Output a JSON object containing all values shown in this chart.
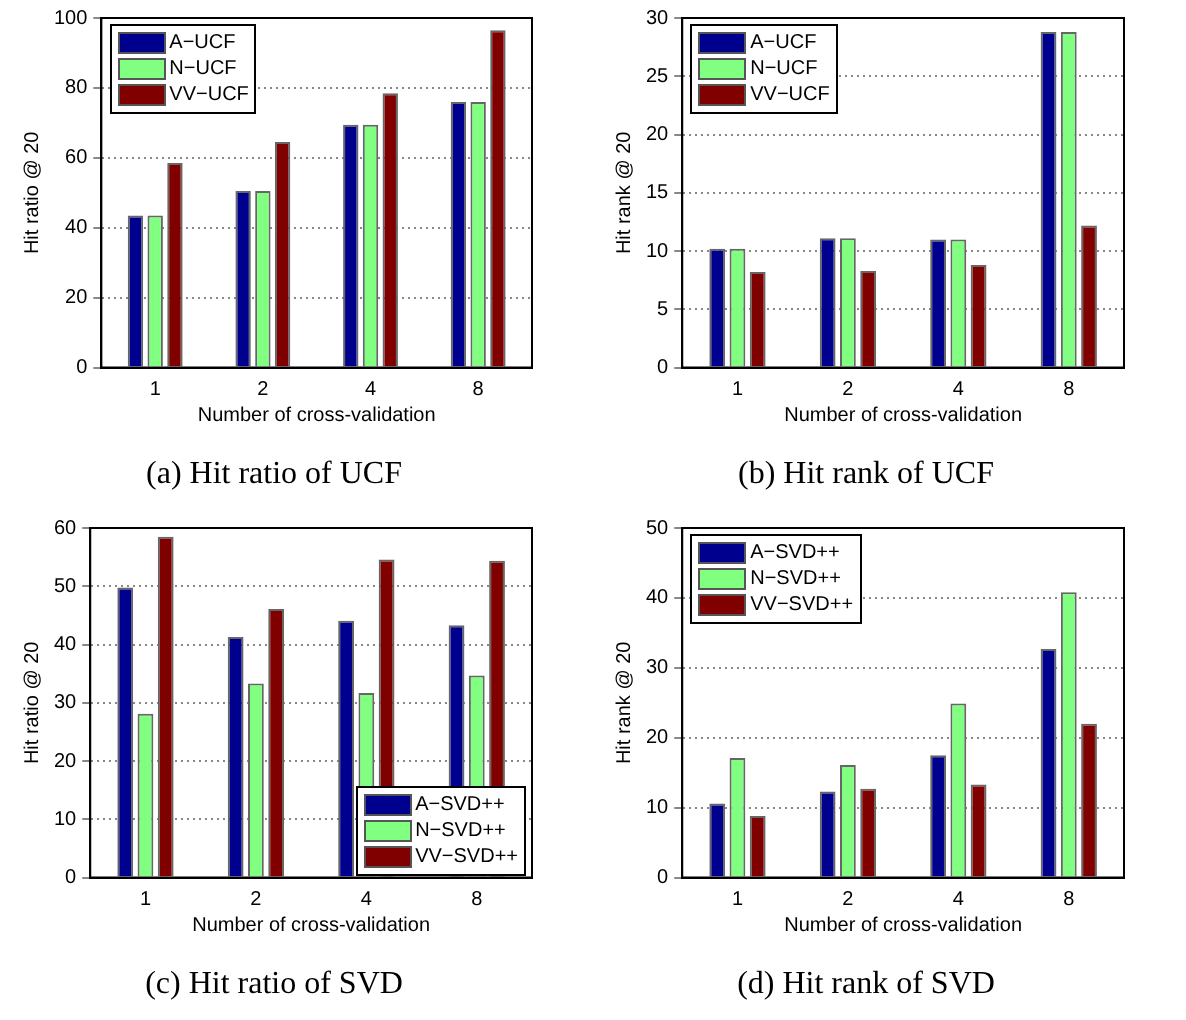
{
  "chart_data": [
    {
      "type": "bar",
      "title": "(a) Hit ratio of UCF",
      "xlabel": "Number of cross-validation",
      "ylabel": "Hit ratio @ 20",
      "categories": [
        "1",
        "2",
        "4",
        "8"
      ],
      "series": [
        {
          "name": "A−UCF",
          "color": "#00008f",
          "values": [
            43.5,
            50.5,
            69.5,
            76
          ]
        },
        {
          "name": "N−UCF",
          "color": "#80ff80",
          "values": [
            43.5,
            50.5,
            69.5,
            76
          ]
        },
        {
          "name": "VV−UCF",
          "color": "#800000",
          "values": [
            58.5,
            64.5,
            78.5,
            96.5
          ]
        }
      ],
      "ylim": [
        0,
        100
      ],
      "yticks": [
        0,
        20,
        40,
        60,
        80,
        100
      ],
      "grid": "y",
      "legend": "top left"
    },
    {
      "type": "bar",
      "title": "(b) Hit rank of UCF",
      "xlabel": "Number of cross-validation",
      "ylabel": "Hit rank @ 20",
      "categories": [
        "1",
        "2",
        "4",
        "8"
      ],
      "series": [
        {
          "name": "A−UCF",
          "color": "#00008f",
          "values": [
            10.2,
            11.1,
            11.0,
            28.8
          ]
        },
        {
          "name": "N−UCF",
          "color": "#80ff80",
          "values": [
            10.2,
            11.1,
            11.0,
            28.8
          ]
        },
        {
          "name": "VV−UCF",
          "color": "#800000",
          "values": [
            8.2,
            8.3,
            8.8,
            12.2
          ]
        }
      ],
      "ylim": [
        0,
        30
      ],
      "yticks": [
        0,
        5,
        10,
        15,
        20,
        25,
        30
      ],
      "grid": "y",
      "legend": "top left"
    },
    {
      "type": "bar",
      "title": "(c) Hit ratio of SVD",
      "xlabel": "Number of cross-validation",
      "ylabel": "Hit ratio @ 20",
      "categories": [
        "1",
        "2",
        "4",
        "8"
      ],
      "series": [
        {
          "name": "A−SVD++",
          "color": "#00008f",
          "values": [
            49.8,
            41.3,
            44.1,
            43.3
          ]
        },
        {
          "name": "N−SVD++",
          "color": "#80ff80",
          "values": [
            28.1,
            33.3,
            31.7,
            34.7
          ]
        },
        {
          "name": "VV−SVD++",
          "color": "#800000",
          "values": [
            58.5,
            46.1,
            54.6,
            54.4
          ]
        }
      ],
      "ylim": [
        0,
        60
      ],
      "yticks": [
        0,
        10,
        20,
        30,
        40,
        50,
        60
      ],
      "grid": "y",
      "legend": "bottom right"
    },
    {
      "type": "bar",
      "title": "(d) Hit rank of SVD",
      "xlabel": "Number of cross-validation",
      "ylabel": "Hit rank @ 20",
      "categories": [
        "1",
        "2",
        "4",
        "8"
      ],
      "series": [
        {
          "name": "A−SVD++",
          "color": "#00008f",
          "values": [
            10.6,
            12.3,
            17.5,
            32.7
          ]
        },
        {
          "name": "N−SVD++",
          "color": "#80ff80",
          "values": [
            17.1,
            16.1,
            24.9,
            40.8
          ]
        },
        {
          "name": "VV−SVD++",
          "color": "#800000",
          "values": [
            8.8,
            12.7,
            13.3,
            22.0
          ]
        }
      ],
      "ylim": [
        0,
        50
      ],
      "yticks": [
        0,
        10,
        20,
        30,
        40,
        50
      ],
      "grid": "y",
      "legend": "top left"
    }
  ]
}
